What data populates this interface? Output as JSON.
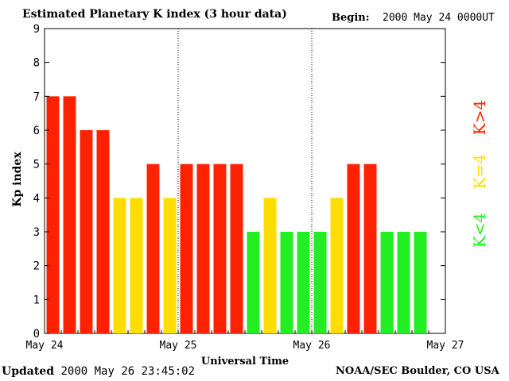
{
  "header": {
    "title": "Estimated Planetary K index (3 hour data)",
    "begin_label": "Begin:",
    "begin_value": "2000 May 24 0000UT"
  },
  "footer": {
    "updated_label": "Updated",
    "updated_value": "2000 May 26 23:45:02",
    "credit": "NOAA/SEC Boulder, CO USA"
  },
  "legend": {
    "high": "K>4",
    "mid": "K=4",
    "low": "K<4"
  },
  "colors": {
    "high": "#ff2200",
    "mid": "#ffdd00",
    "low": "#22ee22"
  },
  "chart_data": {
    "type": "bar",
    "title": "Estimated Planetary K index (3 hour data)",
    "xlabel": "Universal Time",
    "ylabel": "Kp index",
    "ylim": [
      0,
      9
    ],
    "yticks": [
      "0",
      "1",
      "2",
      "3",
      "4",
      "5",
      "6",
      "7",
      "8",
      "9"
    ],
    "xticks": [
      "May 24",
      "May 25",
      "May 26",
      "May 27"
    ],
    "bars_per_day": 8,
    "values": [
      7,
      7,
      6,
      6,
      4,
      4,
      5,
      4,
      5,
      5,
      5,
      5,
      3,
      4,
      3,
      3,
      3,
      4,
      5,
      5,
      3,
      3,
      3
    ]
  }
}
